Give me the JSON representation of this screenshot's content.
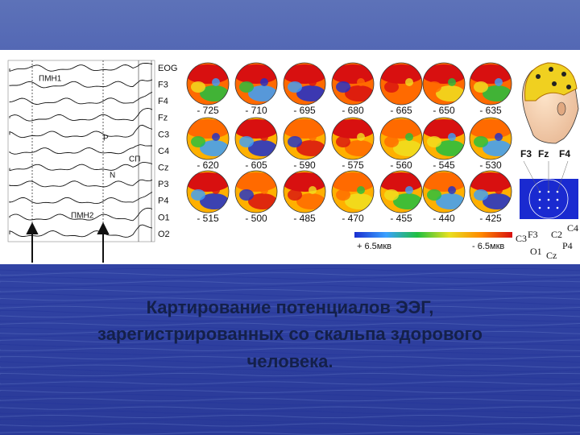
{
  "slide": {
    "eeg": {
      "channels": [
        "EOG",
        "F3",
        "F4",
        "Fz",
        "C3",
        "C4",
        "Cz",
        "P3",
        "P4",
        "O1",
        "O2"
      ],
      "annotations": [
        "ПМН1",
        "Р",
        "СП",
        "N",
        "ПМН2"
      ]
    },
    "maps": {
      "rows": [
        [
          "- 725",
          "- 710",
          "- 695",
          "- 680",
          "- 665",
          "- 650",
          "- 635"
        ],
        [
          "- 620",
          "- 605",
          "- 590",
          "- 575",
          "- 560",
          "- 545",
          "- 530"
        ],
        [
          "- 515",
          "- 500",
          "- 485",
          "- 470",
          "- 455",
          "- 440",
          "- 425"
        ]
      ]
    },
    "scale": {
      "positive": "+ 6.5мкв",
      "negative": "- 6.5мкв"
    },
    "head": {
      "top_labels": [
        "F3",
        "Fz",
        "F4"
      ],
      "grid_labels": [
        "C3",
        "F3",
        "C2",
        "C4",
        "P4",
        "O1",
        "Cz"
      ]
    },
    "caption": [
      "Картирование потенциалов ЭЭГ,",
      "зарегистрированных со скальпа здорового",
      "человека."
    ]
  }
}
